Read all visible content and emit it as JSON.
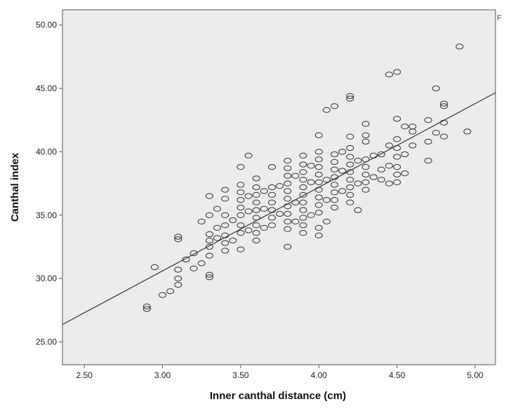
{
  "chart_data": {
    "type": "scatter",
    "title": "",
    "xlabel": "Inner canthal distance (cm)",
    "ylabel": "Canthal index",
    "xlim": [
      2.36,
      5.13
    ],
    "ylim": [
      23.2,
      51.2
    ],
    "x_ticks": [
      "2.50",
      "3.00",
      "3.50",
      "4.00",
      "4.50",
      "5.00"
    ],
    "y_ticks": [
      "25.00",
      "30.00",
      "35.00",
      "40.00",
      "45.00",
      "50.00"
    ],
    "grid": false,
    "legend": "none",
    "edge_text": "F",
    "colors": {
      "plot_bg": "#ececec",
      "marker": "#333333",
      "fit_line": "#333333"
    },
    "fit_line": {
      "slope": 6.6,
      "intercept": 10.8
    },
    "points": [
      [
        2.9,
        27.6
      ],
      [
        2.9,
        27.8
      ],
      [
        2.95,
        30.9
      ],
      [
        3.0,
        28.7
      ],
      [
        3.05,
        29.0
      ],
      [
        3.1,
        29.5
      ],
      [
        3.1,
        30.0
      ],
      [
        3.1,
        30.7
      ],
      [
        3.1,
        33.1
      ],
      [
        3.1,
        33.3
      ],
      [
        3.15,
        31.5
      ],
      [
        3.2,
        30.8
      ],
      [
        3.2,
        32.0
      ],
      [
        3.25,
        31.2
      ],
      [
        3.25,
        34.5
      ],
      [
        3.3,
        30.1
      ],
      [
        3.3,
        30.3
      ],
      [
        3.3,
        31.8
      ],
      [
        3.3,
        32.5
      ],
      [
        3.3,
        33.0
      ],
      [
        3.3,
        33.5
      ],
      [
        3.3,
        35.0
      ],
      [
        3.3,
        36.5
      ],
      [
        3.35,
        33.2
      ],
      [
        3.35,
        34.0
      ],
      [
        3.35,
        35.5
      ],
      [
        3.4,
        32.2
      ],
      [
        3.4,
        32.8
      ],
      [
        3.4,
        33.4
      ],
      [
        3.4,
        34.2
      ],
      [
        3.4,
        35.0
      ],
      [
        3.4,
        36.3
      ],
      [
        3.4,
        37.0
      ],
      [
        3.45,
        33.0
      ],
      [
        3.45,
        34.6
      ],
      [
        3.5,
        32.3
      ],
      [
        3.5,
        33.6
      ],
      [
        3.5,
        34.2
      ],
      [
        3.5,
        35.0
      ],
      [
        3.5,
        35.6
      ],
      [
        3.5,
        36.2
      ],
      [
        3.5,
        36.8
      ],
      [
        3.5,
        37.4
      ],
      [
        3.5,
        38.8
      ],
      [
        3.55,
        33.8
      ],
      [
        3.55,
        35.3
      ],
      [
        3.55,
        36.5
      ],
      [
        3.55,
        39.7
      ],
      [
        3.6,
        33.0
      ],
      [
        3.6,
        33.6
      ],
      [
        3.6,
        34.2
      ],
      [
        3.6,
        34.8
      ],
      [
        3.6,
        35.4
      ],
      [
        3.6,
        36.0
      ],
      [
        3.6,
        36.6
      ],
      [
        3.6,
        37.2
      ],
      [
        3.6,
        37.9
      ],
      [
        3.65,
        34.0
      ],
      [
        3.65,
        35.5
      ],
      [
        3.65,
        36.9
      ],
      [
        3.7,
        34.2
      ],
      [
        3.7,
        34.8
      ],
      [
        3.7,
        35.4
      ],
      [
        3.7,
        36.0
      ],
      [
        3.7,
        36.6
      ],
      [
        3.7,
        37.2
      ],
      [
        3.7,
        38.8
      ],
      [
        3.75,
        35.1
      ],
      [
        3.75,
        37.3
      ],
      [
        3.8,
        32.5
      ],
      [
        3.8,
        33.9
      ],
      [
        3.8,
        34.5
      ],
      [
        3.8,
        35.1
      ],
      [
        3.8,
        35.7
      ],
      [
        3.8,
        36.3
      ],
      [
        3.8,
        36.9
      ],
      [
        3.8,
        37.5
      ],
      [
        3.8,
        38.1
      ],
      [
        3.8,
        38.7
      ],
      [
        3.8,
        39.3
      ],
      [
        3.85,
        34.5
      ],
      [
        3.85,
        36.0
      ],
      [
        3.85,
        38.1
      ],
      [
        3.9,
        33.6
      ],
      [
        3.9,
        34.2
      ],
      [
        3.9,
        34.8
      ],
      [
        3.9,
        35.4
      ],
      [
        3.9,
        36.0
      ],
      [
        3.9,
        36.6
      ],
      [
        3.9,
        37.2
      ],
      [
        3.9,
        37.8
      ],
      [
        3.9,
        38.4
      ],
      [
        3.9,
        39.0
      ],
      [
        3.9,
        39.7
      ],
      [
        3.95,
        35.0
      ],
      [
        3.95,
        37.6
      ],
      [
        3.95,
        38.9
      ],
      [
        4.0,
        33.4
      ],
      [
        4.0,
        34.0
      ],
      [
        4.0,
        35.2
      ],
      [
        4.0,
        35.8
      ],
      [
        4.0,
        36.4
      ],
      [
        4.0,
        37.0
      ],
      [
        4.0,
        37.6
      ],
      [
        4.0,
        38.2
      ],
      [
        4.0,
        38.8
      ],
      [
        4.0,
        39.4
      ],
      [
        4.0,
        40.0
      ],
      [
        4.0,
        41.3
      ],
      [
        4.05,
        34.5
      ],
      [
        4.05,
        36.2
      ],
      [
        4.05,
        37.8
      ],
      [
        4.05,
        43.3
      ],
      [
        4.1,
        35.6
      ],
      [
        4.1,
        36.2
      ],
      [
        4.1,
        36.8
      ],
      [
        4.1,
        37.4
      ],
      [
        4.1,
        38.0
      ],
      [
        4.1,
        38.6
      ],
      [
        4.1,
        39.2
      ],
      [
        4.1,
        39.8
      ],
      [
        4.1,
        43.6
      ],
      [
        4.15,
        36.9
      ],
      [
        4.15,
        38.5
      ],
      [
        4.15,
        40.0
      ],
      [
        4.2,
        36.0
      ],
      [
        4.2,
        36.6
      ],
      [
        4.2,
        37.2
      ],
      [
        4.2,
        37.8
      ],
      [
        4.2,
        38.4
      ],
      [
        4.2,
        39.0
      ],
      [
        4.2,
        39.6
      ],
      [
        4.2,
        40.3
      ],
      [
        4.2,
        41.2
      ],
      [
        4.2,
        44.2
      ],
      [
        4.2,
        44.4
      ],
      [
        4.25,
        35.4
      ],
      [
        4.25,
        37.5
      ],
      [
        4.25,
        39.3
      ],
      [
        4.3,
        37.0
      ],
      [
        4.3,
        37.6
      ],
      [
        4.3,
        38.2
      ],
      [
        4.3,
        38.8
      ],
      [
        4.3,
        39.4
      ],
      [
        4.3,
        40.8
      ],
      [
        4.3,
        41.3
      ],
      [
        4.3,
        42.2
      ],
      [
        4.35,
        38.0
      ],
      [
        4.35,
        39.7
      ],
      [
        4.4,
        37.8
      ],
      [
        4.4,
        38.6
      ],
      [
        4.4,
        39.8
      ],
      [
        4.45,
        37.5
      ],
      [
        4.45,
        38.9
      ],
      [
        4.45,
        40.5
      ],
      [
        4.45,
        46.1
      ],
      [
        4.5,
        37.6
      ],
      [
        4.5,
        38.2
      ],
      [
        4.5,
        38.8
      ],
      [
        4.5,
        39.6
      ],
      [
        4.5,
        40.3
      ],
      [
        4.5,
        41.0
      ],
      [
        4.5,
        42.6
      ],
      [
        4.5,
        46.3
      ],
      [
        4.55,
        38.3
      ],
      [
        4.55,
        39.8
      ],
      [
        4.55,
        42.0
      ],
      [
        4.6,
        40.5
      ],
      [
        4.6,
        41.6
      ],
      [
        4.6,
        42.0
      ],
      [
        4.7,
        39.3
      ],
      [
        4.7,
        40.8
      ],
      [
        4.7,
        42.5
      ],
      [
        4.75,
        41.5
      ],
      [
        4.75,
        45.0
      ],
      [
        4.8,
        41.2
      ],
      [
        4.8,
        42.3
      ],
      [
        4.8,
        43.6
      ],
      [
        4.8,
        43.8
      ],
      [
        4.9,
        48.3
      ],
      [
        4.95,
        41.6
      ]
    ]
  }
}
